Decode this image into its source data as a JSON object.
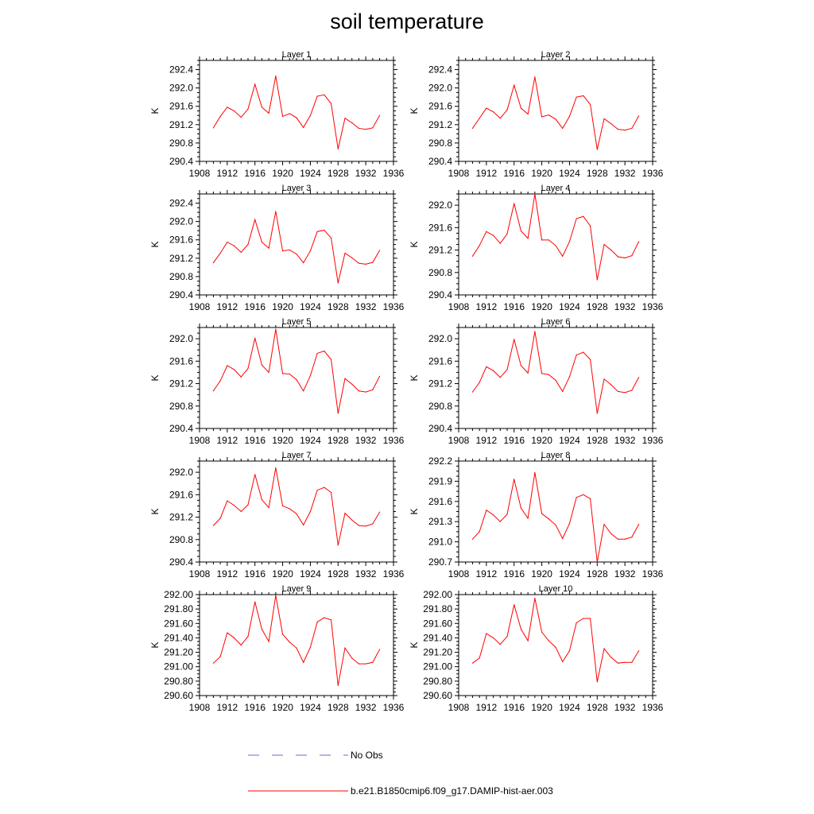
{
  "figure": {
    "title": "soil temperature"
  },
  "legend": [
    {
      "label": "No Obs",
      "color": "#6a6ad0",
      "style": "dashed"
    },
    {
      "label": "b.e21.B1850cmip6.f09_g17.DAMIP-hist-aer.003",
      "color": "#ff0000",
      "style": "solid"
    }
  ],
  "chart_data": [
    {
      "type": "line",
      "title": "Layer 1",
      "ylabel": "K",
      "xlim": [
        1908,
        1936
      ],
      "xticks": [
        "1908",
        "1912",
        "1916",
        "1920",
        "1924",
        "1928",
        "1932",
        "1936"
      ],
      "ylim": [
        290.4,
        292.6
      ],
      "yticks": [
        "290.4",
        "290.8",
        "291.2",
        "291.6",
        "292.0",
        "292.4"
      ],
      "series": [
        {
          "name": "b.e21.B1850cmip6.f09_g17.DAMIP-hist-aer.003",
          "color": "#ff0000",
          "x": [
            1910,
            1911,
            1912,
            1913,
            1914,
            1915,
            1916,
            1917,
            1918,
            1919,
            1920,
            1921,
            1922,
            1923,
            1924,
            1925,
            1926,
            1927,
            1928,
            1929,
            1930,
            1931,
            1932,
            1933,
            1934
          ],
          "values": [
            291.13,
            291.38,
            291.58,
            291.5,
            291.36,
            291.54,
            292.08,
            291.58,
            291.45,
            292.26,
            291.38,
            291.44,
            291.35,
            291.14,
            291.4,
            291.82,
            291.85,
            291.66,
            290.67,
            291.34,
            291.24,
            291.12,
            291.1,
            291.13,
            291.4
          ]
        }
      ]
    },
    {
      "type": "line",
      "title": "Layer 2",
      "ylabel": "K",
      "xlim": [
        1908,
        1936
      ],
      "xticks": [
        "1908",
        "1912",
        "1916",
        "1920",
        "1924",
        "1928",
        "1932",
        "1936"
      ],
      "ylim": [
        290.4,
        292.6
      ],
      "yticks": [
        "290.4",
        "290.8",
        "291.2",
        "291.6",
        "292.0",
        "292.4"
      ],
      "series": [
        {
          "name": "b.e21.B1850cmip6.f09_g17.DAMIP-hist-aer.003",
          "color": "#ff0000",
          "x": [
            1910,
            1911,
            1912,
            1913,
            1914,
            1915,
            1916,
            1917,
            1918,
            1919,
            1920,
            1921,
            1922,
            1923,
            1924,
            1925,
            1926,
            1927,
            1928,
            1929,
            1930,
            1931,
            1932,
            1933,
            1934
          ],
          "values": [
            291.12,
            291.34,
            291.56,
            291.48,
            291.34,
            291.52,
            292.06,
            291.56,
            291.43,
            292.24,
            291.37,
            291.41,
            291.32,
            291.12,
            291.38,
            291.8,
            291.83,
            291.64,
            290.66,
            291.33,
            291.22,
            291.1,
            291.08,
            291.12,
            291.39
          ]
        }
      ]
    },
    {
      "type": "line",
      "title": "Layer 3",
      "ylabel": "K",
      "xlim": [
        1908,
        1936
      ],
      "xticks": [
        "1908",
        "1912",
        "1916",
        "1920",
        "1924",
        "1928",
        "1932",
        "1936"
      ],
      "ylim": [
        290.4,
        292.6
      ],
      "yticks": [
        "290.4",
        "290.8",
        "291.2",
        "291.6",
        "292.0",
        "292.4"
      ],
      "series": [
        {
          "name": "b.e21.B1850cmip6.f09_g17.DAMIP-hist-aer.003",
          "color": "#ff0000",
          "x": [
            1910,
            1911,
            1912,
            1913,
            1914,
            1915,
            1916,
            1917,
            1918,
            1919,
            1920,
            1921,
            1922,
            1923,
            1924,
            1925,
            1926,
            1927,
            1928,
            1929,
            1930,
            1931,
            1932,
            1933,
            1934
          ],
          "values": [
            291.1,
            291.31,
            291.55,
            291.47,
            291.33,
            291.5,
            292.04,
            291.55,
            291.42,
            292.22,
            291.36,
            291.38,
            291.29,
            291.1,
            291.36,
            291.78,
            291.81,
            291.64,
            290.66,
            291.31,
            291.21,
            291.09,
            291.07,
            291.11,
            291.37
          ]
        }
      ]
    },
    {
      "type": "line",
      "title": "Layer 4",
      "ylabel": "K",
      "xlim": [
        1908,
        1936
      ],
      "xticks": [
        "1908",
        "1912",
        "1916",
        "1920",
        "1924",
        "1928",
        "1932",
        "1936"
      ],
      "ylim": [
        290.4,
        292.2
      ],
      "yticks": [
        "290.4",
        "290.8",
        "291.2",
        "291.6",
        "292.0"
      ],
      "series": [
        {
          "name": "b.e21.B1850cmip6.f09_g17.DAMIP-hist-aer.003",
          "color": "#ff0000",
          "x": [
            1910,
            1911,
            1912,
            1913,
            1914,
            1915,
            1916,
            1917,
            1918,
            1919,
            1920,
            1921,
            1922,
            1923,
            1924,
            1925,
            1926,
            1927,
            1928,
            1929,
            1930,
            1931,
            1932,
            1933,
            1934
          ],
          "values": [
            291.09,
            291.28,
            291.53,
            291.46,
            291.32,
            291.49,
            292.03,
            291.54,
            291.41,
            292.2,
            291.38,
            291.38,
            291.28,
            291.09,
            291.35,
            291.76,
            291.8,
            291.63,
            290.67,
            291.3,
            291.2,
            291.08,
            291.06,
            291.1,
            291.35
          ]
        }
      ]
    },
    {
      "type": "line",
      "title": "Layer 5",
      "ylabel": "K",
      "xlim": [
        1908,
        1936
      ],
      "xticks": [
        "1908",
        "1912",
        "1916",
        "1920",
        "1924",
        "1928",
        "1932",
        "1936"
      ],
      "ylim": [
        290.4,
        292.2
      ],
      "yticks": [
        "290.4",
        "290.8",
        "291.2",
        "291.6",
        "292.0"
      ],
      "series": [
        {
          "name": "b.e21.B1850cmip6.f09_g17.DAMIP-hist-aer.003",
          "color": "#ff0000",
          "x": [
            1910,
            1911,
            1912,
            1913,
            1914,
            1915,
            1916,
            1917,
            1918,
            1919,
            1920,
            1921,
            1922,
            1923,
            1924,
            1925,
            1926,
            1927,
            1928,
            1929,
            1930,
            1931,
            1932,
            1933,
            1934
          ],
          "values": [
            291.07,
            291.25,
            291.52,
            291.45,
            291.32,
            291.47,
            292.01,
            291.53,
            291.4,
            292.17,
            291.38,
            291.37,
            291.27,
            291.07,
            291.34,
            291.74,
            291.78,
            291.63,
            290.67,
            291.29,
            291.19,
            291.07,
            291.05,
            291.09,
            291.33
          ]
        }
      ]
    },
    {
      "type": "line",
      "title": "Layer 6",
      "ylabel": "K",
      "xlim": [
        1908,
        1936
      ],
      "xticks": [
        "1908",
        "1912",
        "1916",
        "1920",
        "1924",
        "1928",
        "1932",
        "1936"
      ],
      "ylim": [
        290.4,
        292.2
      ],
      "yticks": [
        "290.4",
        "290.8",
        "291.2",
        "291.6",
        "292.0"
      ],
      "series": [
        {
          "name": "b.e21.B1850cmip6.f09_g17.DAMIP-hist-aer.003",
          "color": "#ff0000",
          "x": [
            1910,
            1911,
            1912,
            1913,
            1914,
            1915,
            1916,
            1917,
            1918,
            1919,
            1920,
            1921,
            1922,
            1923,
            1924,
            1925,
            1926,
            1927,
            1928,
            1929,
            1930,
            1931,
            1932,
            1933,
            1934
          ],
          "values": [
            291.05,
            291.22,
            291.5,
            291.43,
            291.31,
            291.45,
            291.99,
            291.52,
            291.39,
            292.13,
            291.38,
            291.36,
            291.26,
            291.06,
            291.32,
            291.71,
            291.76,
            291.63,
            290.67,
            291.28,
            291.18,
            291.06,
            291.04,
            291.08,
            291.31
          ]
        }
      ]
    },
    {
      "type": "line",
      "title": "Layer 7",
      "ylabel": "K",
      "xlim": [
        1908,
        1936
      ],
      "xticks": [
        "1908",
        "1912",
        "1916",
        "1920",
        "1924",
        "1928",
        "1932",
        "1936"
      ],
      "ylim": [
        290.4,
        292.2
      ],
      "yticks": [
        "290.4",
        "290.8",
        "291.2",
        "291.6",
        "292.0"
      ],
      "series": [
        {
          "name": "b.e21.B1850cmip6.f09_g17.DAMIP-hist-aer.003",
          "color": "#ff0000",
          "x": [
            1910,
            1911,
            1912,
            1913,
            1914,
            1915,
            1916,
            1917,
            1918,
            1919,
            1920,
            1921,
            1922,
            1923,
            1924,
            1925,
            1926,
            1927,
            1928,
            1929,
            1930,
            1931,
            1932,
            1933,
            1934
          ],
          "values": [
            291.05,
            291.18,
            291.49,
            291.41,
            291.3,
            291.42,
            291.96,
            291.51,
            291.37,
            292.08,
            291.4,
            291.35,
            291.26,
            291.06,
            291.3,
            291.68,
            291.73,
            291.64,
            290.7,
            291.27,
            291.15,
            291.05,
            291.04,
            291.08,
            291.29
          ]
        }
      ]
    },
    {
      "type": "line",
      "title": "Layer 8",
      "ylabel": "K",
      "xlim": [
        1908,
        1936
      ],
      "xticks": [
        "1908",
        "1912",
        "1916",
        "1920",
        "1924",
        "1928",
        "1932",
        "1936"
      ],
      "ylim": [
        290.7,
        292.2
      ],
      "yticks": [
        "290.7",
        "291.0",
        "291.3",
        "291.6",
        "291.9",
        "292.2"
      ],
      "series": [
        {
          "name": "b.e21.B1850cmip6.f09_g17.DAMIP-hist-aer.003",
          "color": "#ff0000",
          "x": [
            1910,
            1911,
            1912,
            1913,
            1914,
            1915,
            1916,
            1917,
            1918,
            1919,
            1920,
            1921,
            1922,
            1923,
            1924,
            1925,
            1926,
            1927,
            1928,
            1929,
            1930,
            1931,
            1932,
            1933,
            1934
          ],
          "values": [
            291.04,
            291.15,
            291.47,
            291.4,
            291.3,
            291.41,
            291.93,
            291.5,
            291.35,
            292.03,
            291.42,
            291.34,
            291.25,
            291.05,
            291.27,
            291.66,
            291.7,
            291.64,
            290.7,
            291.26,
            291.12,
            291.04,
            291.04,
            291.07,
            291.26
          ]
        }
      ]
    },
    {
      "type": "line",
      "title": "Layer 9",
      "ylabel": "K",
      "xlim": [
        1908,
        1936
      ],
      "xticks": [
        "1908",
        "1912",
        "1916",
        "1920",
        "1924",
        "1928",
        "1932",
        "1936"
      ],
      "ylim": [
        290.6,
        292.0
      ],
      "yticks": [
        "290.60",
        "290.80",
        "291.00",
        "291.20",
        "291.40",
        "291.60",
        "291.80",
        "292.00"
      ],
      "series": [
        {
          "name": "b.e21.B1850cmip6.f09_g17.DAMIP-hist-aer.003",
          "color": "#ff0000",
          "x": [
            1910,
            1911,
            1912,
            1913,
            1914,
            1915,
            1916,
            1917,
            1918,
            1919,
            1920,
            1921,
            1922,
            1923,
            1924,
            1925,
            1926,
            1927,
            1928,
            1929,
            1930,
            1931,
            1932,
            1933,
            1934
          ],
          "values": [
            291.05,
            291.14,
            291.47,
            291.4,
            291.3,
            291.42,
            291.9,
            291.52,
            291.35,
            291.99,
            291.45,
            291.34,
            291.26,
            291.06,
            291.27,
            291.62,
            291.68,
            291.65,
            290.74,
            291.26,
            291.12,
            291.04,
            291.04,
            291.06,
            291.24
          ]
        }
      ]
    },
    {
      "type": "line",
      "title": "Layer 10",
      "ylabel": "K",
      "xlim": [
        1908,
        1936
      ],
      "xticks": [
        "1908",
        "1912",
        "1916",
        "1920",
        "1924",
        "1928",
        "1932",
        "1936"
      ],
      "ylim": [
        290.6,
        292.0
      ],
      "yticks": [
        "290.60",
        "290.80",
        "291.00",
        "291.20",
        "291.40",
        "291.60",
        "291.80",
        "292.00"
      ],
      "series": [
        {
          "name": "b.e21.B1850cmip6.f09_g17.DAMIP-hist-aer.003",
          "color": "#ff0000",
          "x": [
            1910,
            1911,
            1912,
            1913,
            1914,
            1915,
            1916,
            1917,
            1918,
            1919,
            1920,
            1921,
            1922,
            1923,
            1924,
            1925,
            1926,
            1927,
            1928,
            1929,
            1930,
            1931,
            1932,
            1933,
            1934
          ],
          "values": [
            291.05,
            291.12,
            291.46,
            291.4,
            291.31,
            291.42,
            291.86,
            291.52,
            291.36,
            291.95,
            291.48,
            291.36,
            291.27,
            291.07,
            291.22,
            291.61,
            291.67,
            291.67,
            290.79,
            291.25,
            291.13,
            291.05,
            291.06,
            291.06,
            291.22
          ]
        }
      ]
    }
  ]
}
